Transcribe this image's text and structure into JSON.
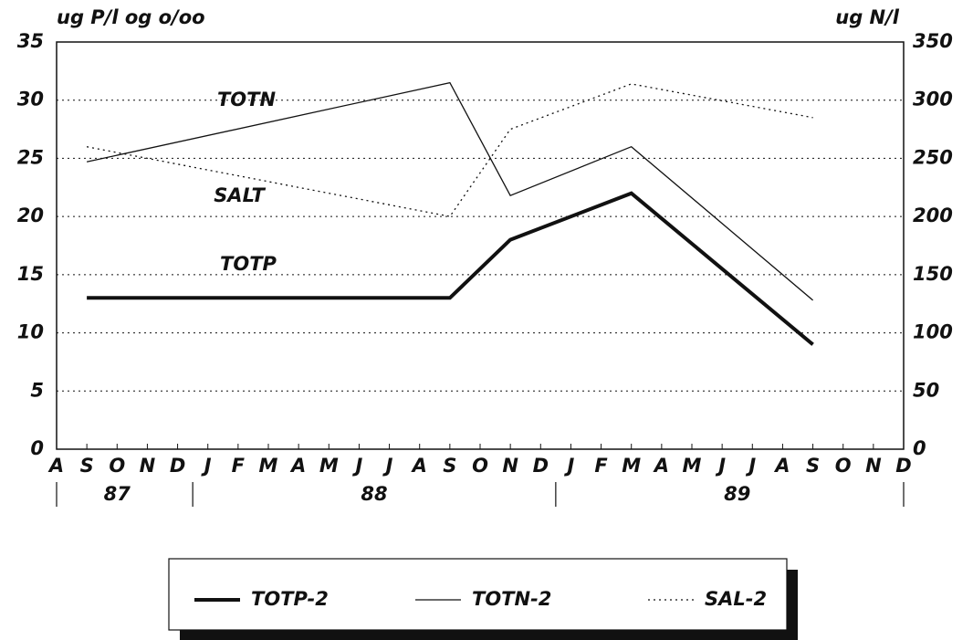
{
  "chart_data": {
    "type": "line",
    "y_label": "ug P/l og o/oo",
    "y2_label": "ug N/l",
    "categories": [
      "A",
      "S",
      "O",
      "N",
      "D",
      "J",
      "F",
      "M",
      "A",
      "M",
      "J",
      "J",
      "A",
      "S",
      "O",
      "N",
      "D",
      "J",
      "F",
      "M",
      "A",
      "M",
      "J",
      "J",
      "A",
      "S",
      "O",
      "N",
      "D"
    ],
    "years": [
      "87",
      "88",
      "89"
    ],
    "ylim": [
      0,
      35
    ],
    "yticks": [
      0,
      5,
      10,
      15,
      20,
      25,
      30,
      35
    ],
    "y2lim": [
      0,
      350
    ],
    "y2ticks": [
      0,
      50,
      100,
      150,
      200,
      250,
      300,
      350
    ],
    "grid": true,
    "annotations": [
      "TOTN",
      "SALT",
      "TOTP"
    ],
    "series": [
      {
        "name": "TOTP-2",
        "color": "#111111",
        "x": [
          "1987-09",
          "1988-09",
          "1988-11",
          "1989-03",
          "1989-09"
        ],
        "values": [
          13,
          13,
          18,
          22,
          9
        ]
      },
      {
        "name": "TOTN-2",
        "color": "#111111",
        "axis": "y2",
        "x": [
          "1987-09",
          "1988-09",
          "1988-11",
          "1989-03",
          "1989-09"
        ],
        "values": [
          247,
          315,
          218,
          260,
          128
        ]
      },
      {
        "name": "SAL-2",
        "color": "#111111",
        "x": [
          "1987-09",
          "1988-09",
          "1988-11",
          "1989-03",
          "1989-09"
        ],
        "values": [
          26,
          20,
          27.5,
          31.4,
          28.5
        ]
      }
    ]
  }
}
